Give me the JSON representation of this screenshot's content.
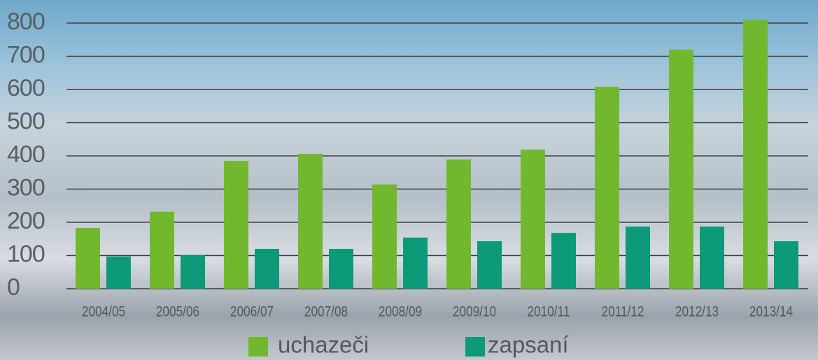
{
  "chart_data": {
    "type": "bar",
    "categories": [
      "2004/05",
      "2005/06",
      "2006/07",
      "2007/08",
      "2008/09",
      "2009/10",
      "2010/11",
      "2011/12",
      "2012/13",
      "2013/14"
    ],
    "series": [
      {
        "name": "uchazeči",
        "color": "#72b82e",
        "values": [
          183,
          232,
          385,
          406,
          314,
          389,
          419,
          608,
          720,
          810
        ]
      },
      {
        "name": "zapsaní",
        "color": "#0d9a78",
        "values": [
          97,
          101,
          120,
          120,
          154,
          143,
          168,
          187,
          187,
          143
        ]
      }
    ],
    "ylim": [
      0,
      820
    ],
    "yticks": [
      0,
      100,
      200,
      300,
      400,
      500,
      600,
      700,
      800
    ],
    "grid": true,
    "legend": "bottom"
  }
}
